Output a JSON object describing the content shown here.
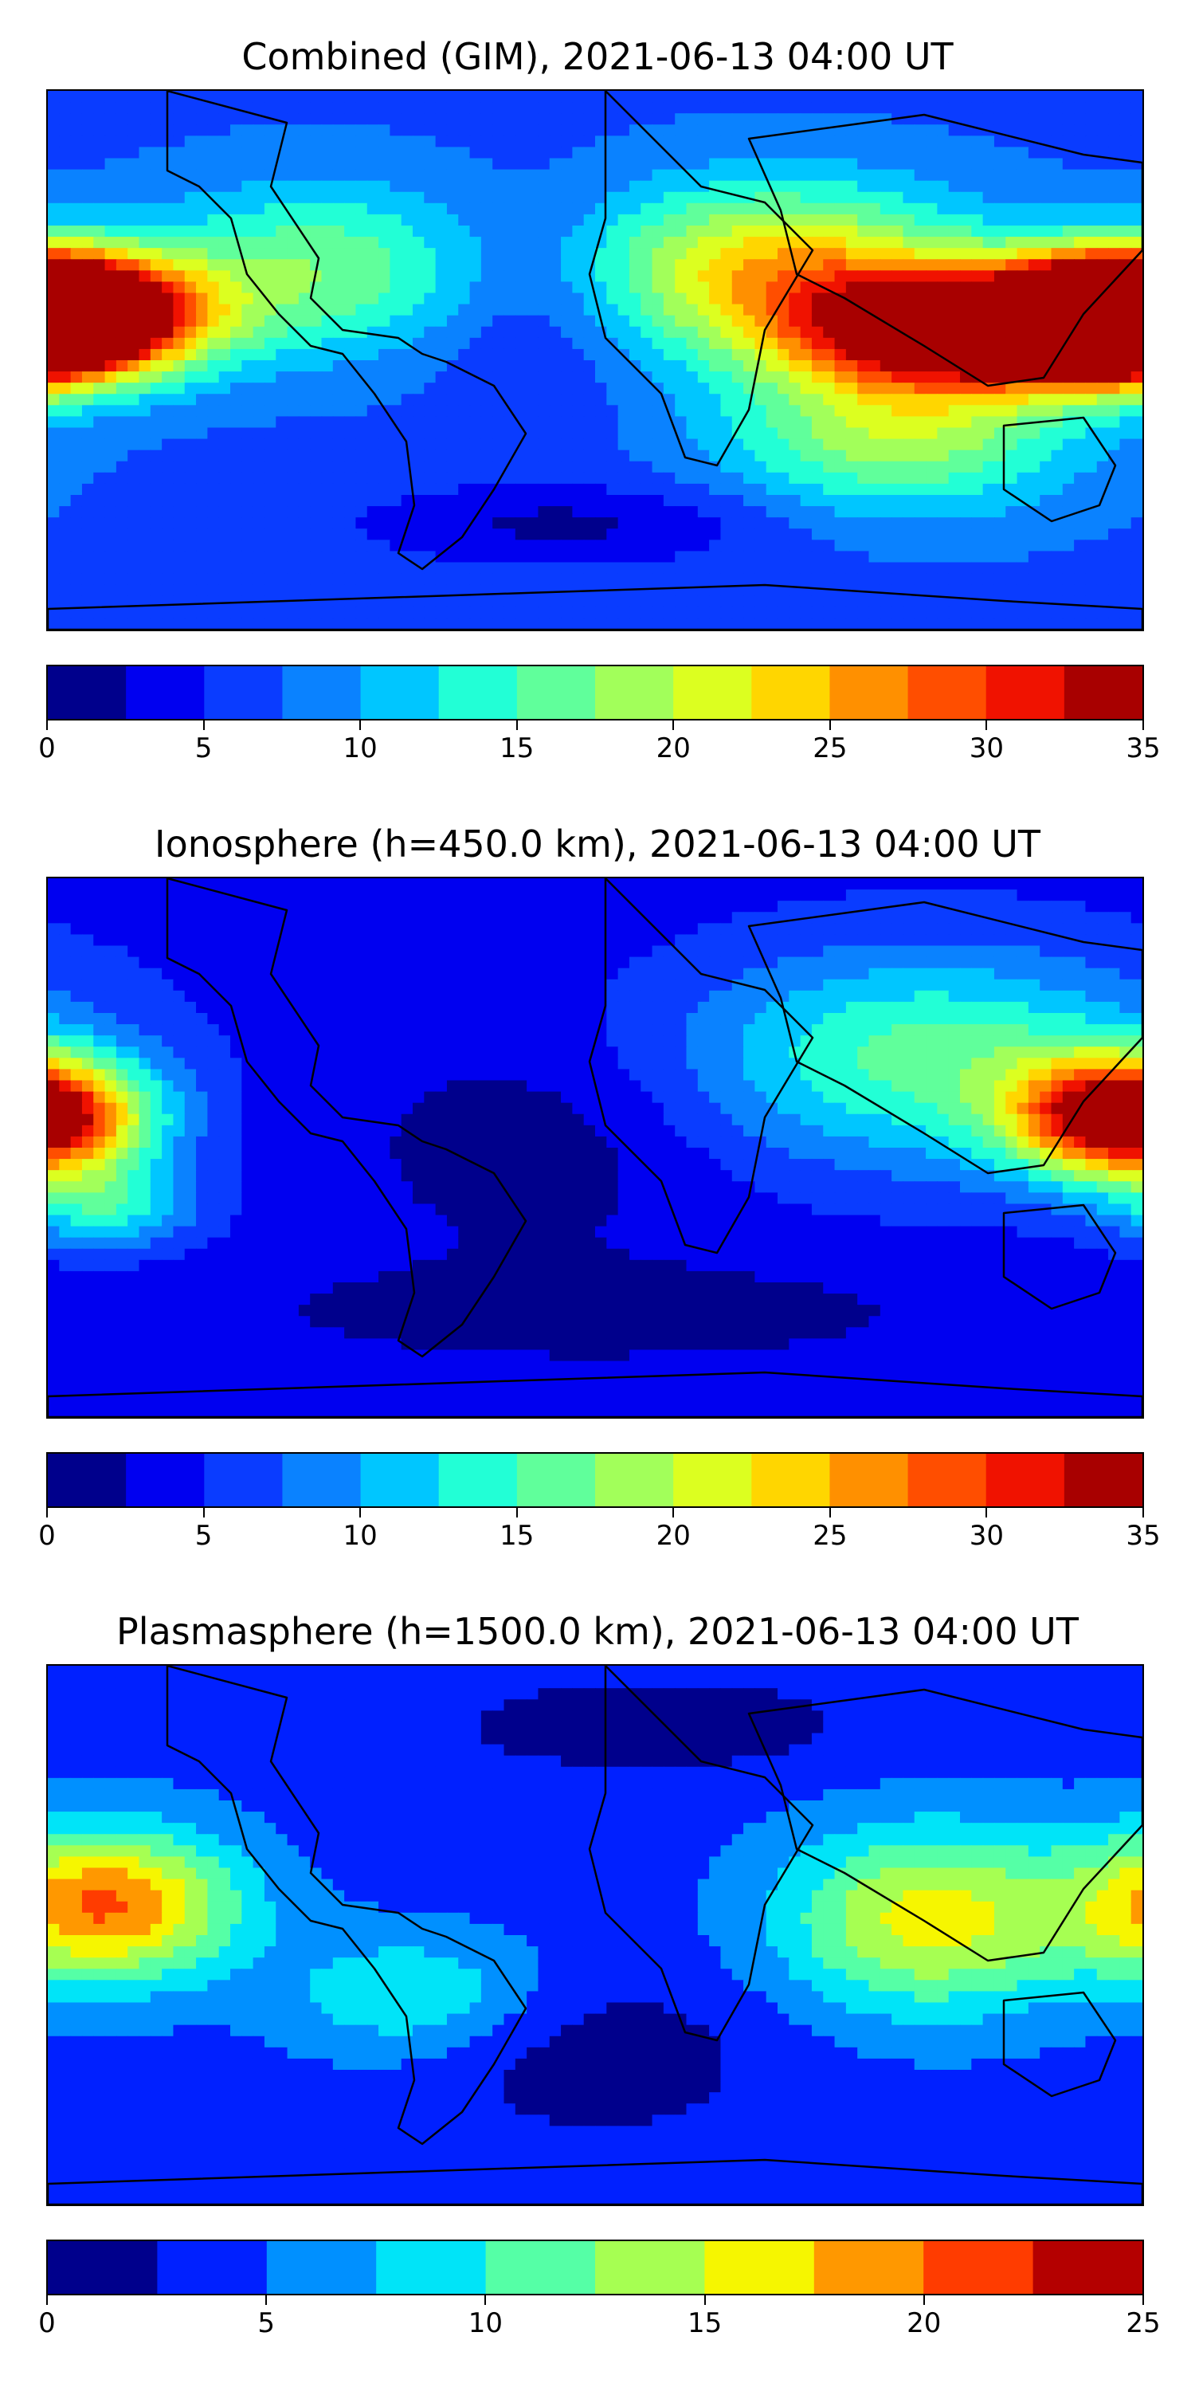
{
  "chart_data": [
    {
      "type": "heatmap",
      "title": "Combined (GIM), 2021-06-13 04:00 UT",
      "colorbar": {
        "min": 0,
        "max": 35,
        "step": 2.5,
        "ticks": [
          0,
          5,
          10,
          15,
          20,
          25,
          30,
          35
        ],
        "colors": [
          "#00008c",
          "#0000f0",
          "#0a3cff",
          "#0a82ff",
          "#00c6ff",
          "#22ffd6",
          "#60ff9b",
          "#a2ff5a",
          "#dcff20",
          "#ffd600",
          "#ff9000",
          "#ff4e00",
          "#f01200",
          "#a80000"
        ]
      },
      "field": {
        "base": 7,
        "features": [
          {
            "lon": -170,
            "lat": 15,
            "value": 32,
            "slon": 30,
            "slat": 14
          },
          {
            "lon": 120,
            "lat": 10,
            "value": 30,
            "slon": 38,
            "slat": 14
          },
          {
            "lon": 170,
            "lat": 15,
            "value": 28,
            "slon": 25,
            "slat": 14
          },
          {
            "lon": 60,
            "lat": 30,
            "value": 17,
            "slon": 45,
            "slat": 20
          },
          {
            "lon": 100,
            "lat": -25,
            "value": 12,
            "slon": 40,
            "slat": 18
          },
          {
            "lon": -90,
            "lat": 30,
            "value": 10,
            "slon": 40,
            "slat": 20
          },
          {
            "lon": -20,
            "lat": 20,
            "value": -4,
            "slon": 25,
            "slat": 25
          },
          {
            "lon": -10,
            "lat": -55,
            "value": -5,
            "slon": 50,
            "slat": 10
          }
        ]
      }
    },
    {
      "type": "heatmap",
      "title": "Ionosphere  (h=450.0 km), 2021-06-13 04:00 UT",
      "colorbar": {
        "min": 0,
        "max": 35,
        "step": 2.5,
        "ticks": [
          0,
          5,
          10,
          15,
          20,
          25,
          30,
          35
        ],
        "colors": [
          "#00008c",
          "#0000f0",
          "#0a3cff",
          "#0a82ff",
          "#00c6ff",
          "#22ffd6",
          "#60ff9b",
          "#a2ff5a",
          "#dcff20",
          "#ffd600",
          "#ff9000",
          "#ff4e00",
          "#f01200",
          "#a80000"
        ]
      },
      "field": {
        "base": 4,
        "features": [
          {
            "lon": -180,
            "lat": 10,
            "value": 17,
            "slon": 25,
            "slat": 14
          },
          {
            "lon": 170,
            "lat": 10,
            "value": 17,
            "slon": 25,
            "slat": 14
          },
          {
            "lon": 110,
            "lat": 30,
            "value": 12,
            "slon": 55,
            "slat": 25
          },
          {
            "lon": -160,
            "lat": -20,
            "value": 9,
            "slon": 20,
            "slat": 10
          },
          {
            "lon": -20,
            "lat": 0,
            "value": -3,
            "slon": 40,
            "slat": 25
          },
          {
            "lon": 0,
            "lat": -55,
            "value": -3,
            "slon": 80,
            "slat": 12
          }
        ]
      }
    },
    {
      "type": "heatmap",
      "title": "Plasmasphere (h=1500.0 km), 2021-06-13 04:00 UT",
      "colorbar": {
        "min": 0,
        "max": 25,
        "step": 2.5,
        "ticks": [
          0,
          5,
          10,
          15,
          20,
          25
        ],
        "colors": [
          "#00008c",
          "#0020ff",
          "#0090ff",
          "#00e4f8",
          "#55ffa6",
          "#a6ff52",
          "#f6f600",
          "#ff9800",
          "#ff3c00",
          "#b40000"
        ]
      },
      "field": {
        "base": 4,
        "features": [
          {
            "lon": -160,
            "lat": 10,
            "value": 16,
            "slon": 30,
            "slat": 18
          },
          {
            "lon": 110,
            "lat": 5,
            "value": 12,
            "slon": 35,
            "slat": 22
          },
          {
            "lon": -60,
            "lat": -20,
            "value": 6,
            "slon": 30,
            "slat": 15
          },
          {
            "lon": 20,
            "lat": 70,
            "value": -3,
            "slon": 50,
            "slat": 12
          },
          {
            "lon": 0,
            "lat": -40,
            "value": -3,
            "slon": 40,
            "slat": 20
          }
        ]
      }
    }
  ]
}
